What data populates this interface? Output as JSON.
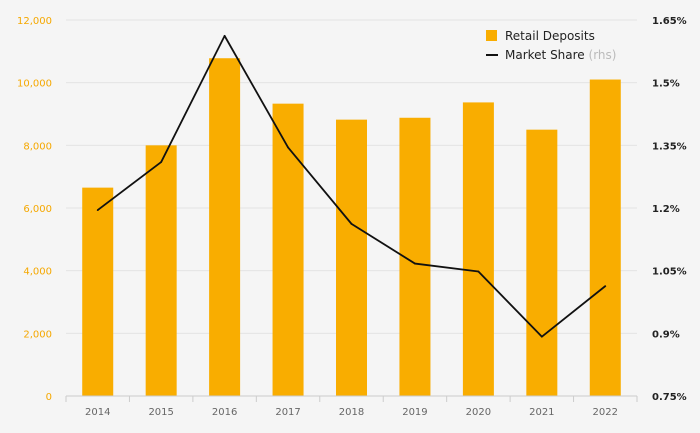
{
  "chart_data": {
    "type": "bar",
    "categories": [
      "2014",
      "2015",
      "2016",
      "2017",
      "2018",
      "2019",
      "2020",
      "2021",
      "2022"
    ],
    "series": [
      {
        "name": "Retail Deposits",
        "type": "bar",
        "axis": "left",
        "color": "#f9ad00",
        "values": [
          6650,
          8000,
          10780,
          9330,
          8820,
          8880,
          9370,
          8500,
          10100
        ]
      },
      {
        "name": "Market Share",
        "type": "line",
        "axis": "right",
        "color": "#111111",
        "values": [
          1.195,
          1.31,
          1.612,
          1.345,
          1.162,
          1.067,
          1.048,
          0.892,
          1.013
        ]
      }
    ],
    "y_left": {
      "lim": [
        0,
        12000
      ],
      "ticks": [
        0,
        2000,
        4000,
        6000,
        8000,
        10000,
        12000
      ],
      "tick_labels": [
        "0",
        "2,000",
        "4,000",
        "6,000",
        "8,000",
        "10,000",
        "12,000"
      ],
      "color": "#f5a800"
    },
    "y_right": {
      "lim": [
        0.75,
        1.65
      ],
      "ticks": [
        0.75,
        0.9,
        1.05,
        1.2,
        1.35,
        1.5,
        1.65
      ],
      "tick_labels": [
        "0.75%",
        "0.9%",
        "1.05%",
        "1.2%",
        "1.35%",
        "1.5%",
        "1.65%"
      ]
    },
    "legend": {
      "position": "top-right",
      "items": [
        {
          "label": "Retail Deposits",
          "suffix": "",
          "marker": "square",
          "color": "#f9ad00"
        },
        {
          "label": "Market Share",
          "suffix": "(rhs)",
          "marker": "line",
          "color": "#111111"
        }
      ]
    },
    "grid": true,
    "gridColor": "#e4e4e4",
    "title": "",
    "xlabel": "",
    "ylabel": ""
  }
}
